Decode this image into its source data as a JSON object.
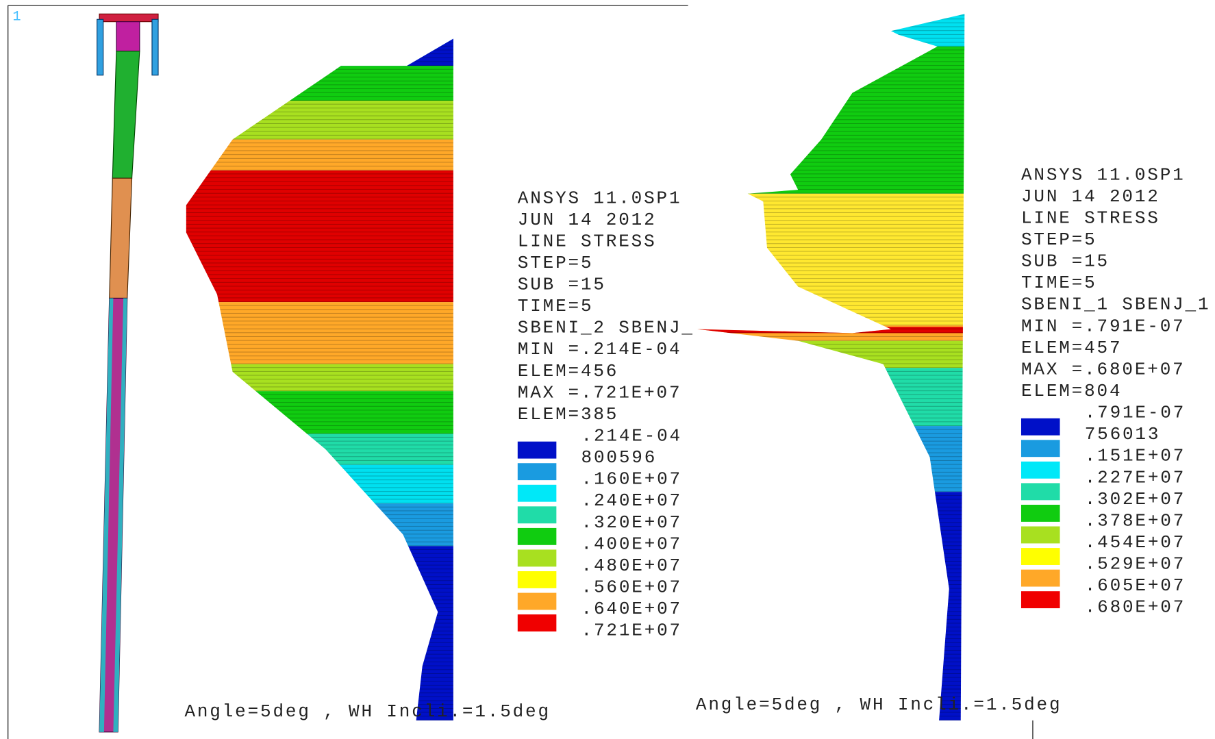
{
  "window_number": "1",
  "panels": [
    {
      "info": [
        "ANSYS 11.0SP1",
        "JUN 14 2012",
        "LINE STRESS",
        "STEP=5",
        "SUB =15",
        "TIME=5",
        "SBENI_2 SBENJ_",
        "MIN =.214E-04",
        "ELEM=456",
        "MAX =.721E+07",
        "ELEM=385"
      ],
      "legend_labels": [
        ".214E-04",
        "800596",
        ".160E+07",
        ".240E+07",
        ".320E+07",
        ".400E+07",
        ".480E+07",
        ".560E+07",
        ".640E+07",
        ".721E+07"
      ],
      "legend_colors": [
        "#0010c8",
        "#1a9be0",
        "#00e8f8",
        "#20dca8",
        "#10cc10",
        "#a8e020",
        "#ffff00",
        "#ffa828",
        "#f00000"
      ],
      "footer": "Angle=5deg , WH Incli.=1.5deg"
    },
    {
      "info": [
        "ANSYS 11.0SP1",
        "JUN 14 2012",
        "LINE STRESS",
        "STEP=5",
        "SUB =15",
        "TIME=5",
        "SBENI_1 SBENJ_1",
        "MIN =.791E-07",
        "ELEM=457",
        "MAX =.680E+07",
        "ELEM=804"
      ],
      "legend_labels": [
        ".791E-07",
        "756013",
        ".151E+07",
        ".227E+07",
        ".302E+07",
        ".378E+07",
        ".454E+07",
        ".529E+07",
        ".605E+07",
        ".680E+07"
      ],
      "legend_colors": [
        "#0010c8",
        "#1a9be0",
        "#00e8f8",
        "#20dca8",
        "#10cc10",
        "#a8e020",
        "#ffff00",
        "#ffa828",
        "#f00000"
      ],
      "footer": "Angle=5deg , WH Incli.=1.5deg"
    }
  ]
}
